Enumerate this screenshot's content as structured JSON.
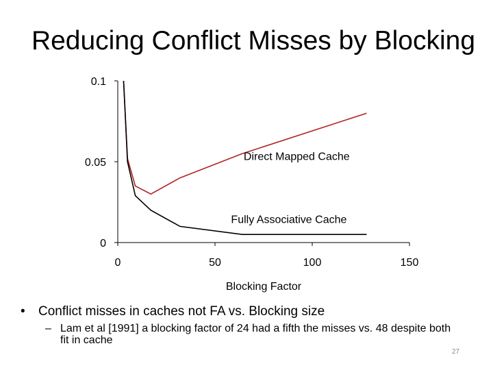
{
  "slide": {
    "title": "Reducing Conflict Misses by Blocking",
    "bullet_marker": "•",
    "bullet_text": "Conflict misses in caches not FA vs. Blocking size",
    "sub_marker": "–",
    "sub_text": "Lam et al [1991] a blocking factor of 24 had a fifth the  misses vs. 48 despite both fit in cache",
    "page_number": "27"
  },
  "chart_data": {
    "type": "line",
    "title": "",
    "xlabel": "Blocking Factor",
    "ylabel": "",
    "xlim": [
      0,
      150
    ],
    "ylim": [
      0,
      0.1
    ],
    "x_ticks": [
      0,
      50,
      100,
      150
    ],
    "x_tick_labels": [
      "0",
      "50",
      "100",
      "150"
    ],
    "y_ticks": [
      0,
      0.05,
      0.1
    ],
    "y_tick_labels": [
      "0",
      "0.05",
      "0.1"
    ],
    "grid": false,
    "series": [
      {
        "name": "Direct Mapped Cache",
        "color": "#b22222",
        "x": [
          3,
          5,
          9,
          17,
          32,
          64,
          128
        ],
        "y": [
          0.1,
          0.052,
          0.035,
          0.03,
          0.04,
          0.055,
          0.08
        ]
      },
      {
        "name": "Fully Associative Cache",
        "color": "#000000",
        "x": [
          3,
          5,
          9,
          17,
          32,
          64,
          128
        ],
        "y": [
          0.1,
          0.05,
          0.029,
          0.02,
          0.01,
          0.005,
          0.005
        ]
      }
    ]
  }
}
